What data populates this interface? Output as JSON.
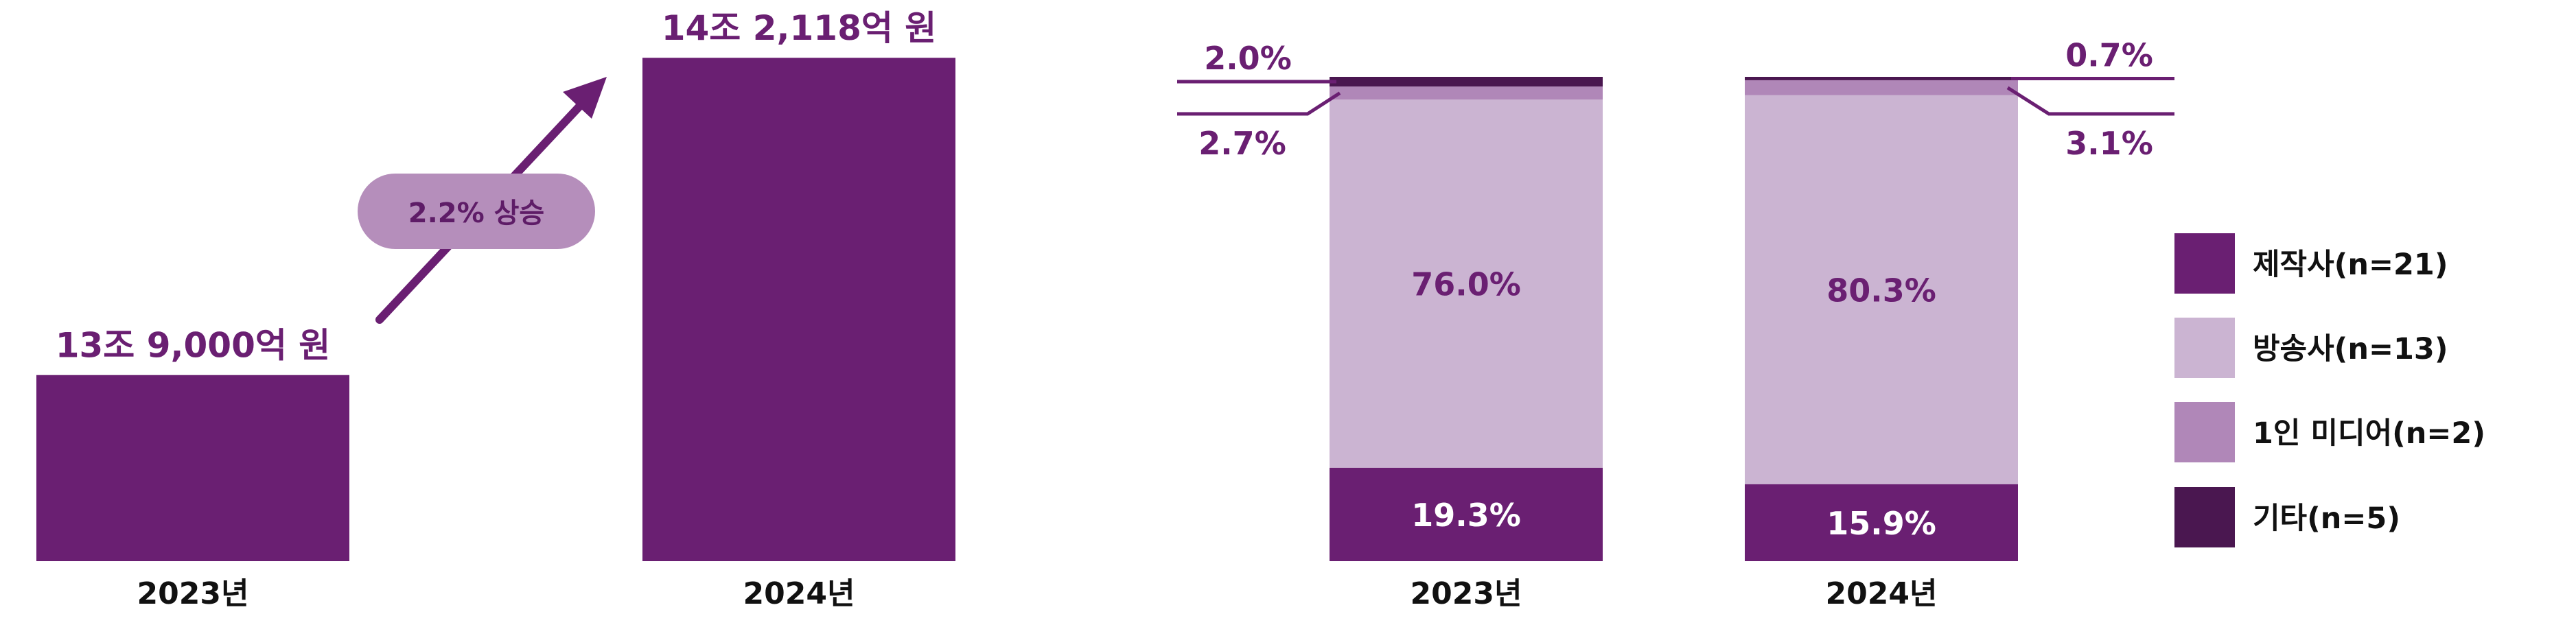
{
  "colors": {
    "dark_purple": "#6a1f72",
    "light_purple": "#cbb4d2",
    "mid_purple": "#b087b8",
    "very_dark_purple": "#4a1750",
    "pill_bg": "#b58ebb",
    "pill_text": "#5e1c67",
    "axis_text": "#111111",
    "white": "#ffffff"
  },
  "chart_data": [
    {
      "type": "bar",
      "categories": [
        "2023년",
        "2024년"
      ],
      "values": [
        13.9,
        14.2118
      ],
      "value_labels": [
        "13조 9,000억 원",
        "14조 2,118억 원"
      ],
      "annotation": "2.2% 상승"
    },
    {
      "type": "bar",
      "stacked": true,
      "percent": true,
      "categories": [
        "2023년",
        "2024년"
      ],
      "series": [
        {
          "name": "제작사(n=21)",
          "key": "dark_purple",
          "values": [
            19.3,
            15.9
          ],
          "labels": [
            "19.3%",
            "15.9%"
          ]
        },
        {
          "name": "방송사(n=13)",
          "key": "light_purple",
          "values": [
            76.0,
            80.3
          ],
          "labels": [
            "76.0%",
            "80.3%"
          ]
        },
        {
          "name": "1인 미디어(n=2)",
          "key": "mid_purple",
          "values": [
            2.7,
            3.1
          ],
          "labels": [
            "2.7%",
            "3.1%"
          ]
        },
        {
          "name": "기타(n=5)",
          "key": "very_dark_purple",
          "values": [
            2.0,
            0.7
          ],
          "labels": [
            "2.0%",
            "0.7%"
          ]
        }
      ],
      "legend_position": "right"
    }
  ]
}
